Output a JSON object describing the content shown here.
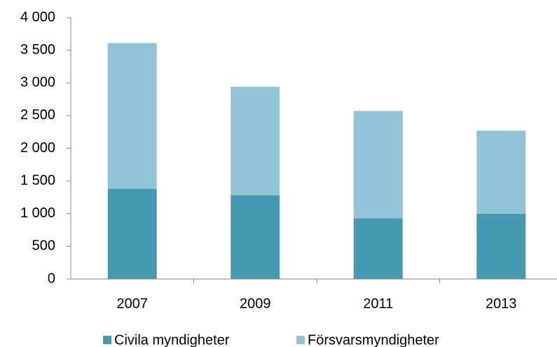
{
  "chart_data": {
    "type": "stacked_bar",
    "categories": [
      "2007",
      "2009",
      "2011",
      "2013"
    ],
    "series": [
      {
        "name": "Civila myndigheter",
        "color": "#4599b1",
        "values": [
          1380,
          1280,
          930,
          1000
        ]
      },
      {
        "name": "Försvarsmyndigheter",
        "color": "#93c4d6",
        "values": [
          2230,
          1660,
          1640,
          1270
        ]
      }
    ],
    "ylim": [
      0,
      4000
    ],
    "yticks": [
      0,
      500,
      {
        "value": 1000,
        "label": "1 000"
      },
      {
        "value": 1500,
        "label": "1 500"
      },
      {
        "value": 2000,
        "label": "2 000"
      },
      {
        "value": 2500,
        "label": "2 500"
      },
      {
        "value": 3000,
        "label": "3 000"
      },
      {
        "value": 3500,
        "label": "3 500"
      },
      {
        "value": 4000,
        "label": "4 000"
      }
    ],
    "legend": "bottom"
  }
}
